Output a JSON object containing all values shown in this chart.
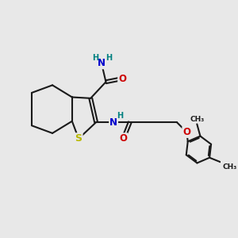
{
  "bg_color": "#e8e8e8",
  "bond_color": "#1a1a1a",
  "bond_width": 1.5,
  "atom_colors": {
    "S": "#b8b800",
    "N": "#0000cc",
    "O": "#cc0000",
    "C": "#1a1a1a",
    "H": "#008080"
  },
  "font_size": 8.5,
  "figsize": [
    3.0,
    3.0
  ],
  "dpi": 100
}
